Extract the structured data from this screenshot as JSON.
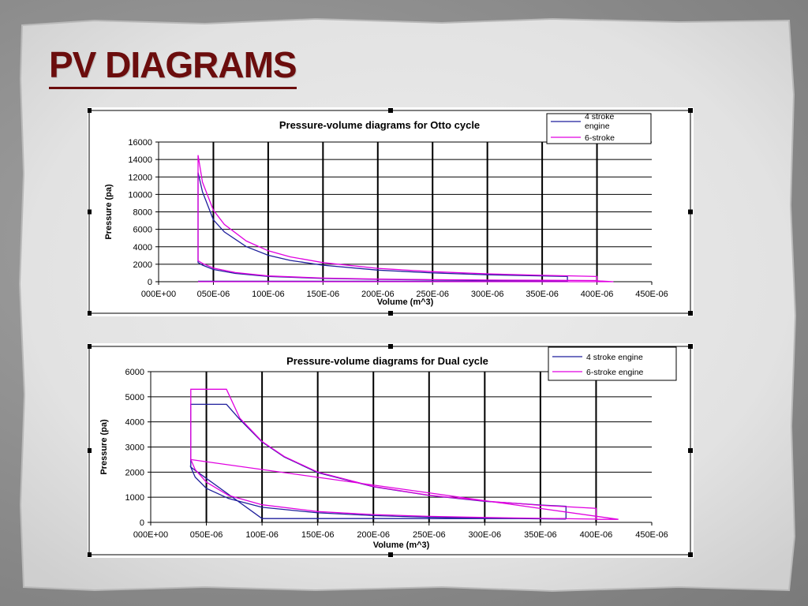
{
  "slide": {
    "title": "PV DIAGRAMS"
  },
  "chart_data": [
    {
      "type": "line",
      "title": "Pressure-volume diagrams for Otto cycle",
      "xlabel": "Volume (m^3)",
      "ylabel": "Pressure (pa)",
      "xlim": [
        0,
        0.00045
      ],
      "ylim": [
        0,
        16000
      ],
      "x_tick_labels": [
        "000E+00",
        "050E-06",
        "100E-06",
        "150E-06",
        "200E-06",
        "250E-06",
        "300E-06",
        "350E-06",
        "400E-06",
        "450E-06"
      ],
      "y_tick_labels": [
        "0",
        "2000",
        "4000",
        "6000",
        "8000",
        "10000",
        "12000",
        "14000",
        "16000"
      ],
      "grid": {
        "horizontal": true,
        "vertical": true
      },
      "legend_position": "top-right",
      "series": [
        {
          "name": "4 stroke engine",
          "color": "#1f1f9c",
          "points": [
            [
              3.6e-05,
              50
            ],
            [
              0.000373,
              50
            ],
            [
              0.000373,
              600
            ],
            [
              0.0003,
              800
            ],
            [
              0.00025,
              1000
            ],
            [
              0.0002,
              1330
            ],
            [
              0.00015,
              1890
            ],
            [
              0.00012,
              2440
            ],
            [
              0.0001,
              3030
            ],
            [
              8e-05,
              4010
            ],
            [
              6e-05,
              5700
            ],
            [
              5e-05,
              7100
            ],
            [
              4e-05,
              10300
            ],
            [
              3.6e-05,
              12500
            ],
            [
              3.6e-05,
              2200
            ],
            [
              4e-05,
              1900
            ],
            [
              5e-05,
              1400
            ],
            [
              7e-05,
              950
            ],
            [
              0.0001,
              600
            ],
            [
              0.00015,
              380
            ],
            [
              0.0002,
              270
            ],
            [
              0.00025,
              205
            ],
            [
              0.0003,
              165
            ],
            [
              0.00035,
              135
            ],
            [
              0.000373,
              120
            ]
          ]
        },
        {
          "name": "6-stroke",
          "color": "#e000e0",
          "points": [
            [
              3.6e-05,
              0
            ],
            [
              0.000415,
              0
            ],
            [
              0.0004,
              100
            ],
            [
              0.0004,
              600
            ],
            [
              0.00035,
              730
            ],
            [
              0.0003,
              900
            ],
            [
              0.00025,
              1150
            ],
            [
              0.0002,
              1530
            ],
            [
              0.00015,
              2190
            ],
            [
              0.00012,
              2850
            ],
            [
              0.0001,
              3540
            ],
            [
              8e-05,
              4660
            ],
            [
              6e-05,
              6560
            ],
            [
              5e-05,
              8200
            ],
            [
              4e-05,
              11400
            ],
            [
              3.6e-05,
              14500
            ],
            [
              3.6e-05,
              2400
            ],
            [
              4e-05,
              2100
            ],
            [
              5e-05,
              1560
            ],
            [
              7e-05,
              1050
            ],
            [
              0.0001,
              660
            ],
            [
              0.00015,
              420
            ],
            [
              0.0002,
              300
            ],
            [
              0.00025,
              235
            ],
            [
              0.0003,
              190
            ],
            [
              0.00035,
              160
            ],
            [
              0.0004,
              140
            ]
          ]
        }
      ]
    },
    {
      "type": "line",
      "title": "Pressure-volume diagrams for Dual cycle",
      "xlabel": "Volume (m^3)",
      "ylabel": "Pressure (pa)",
      "xlim": [
        0,
        0.00045
      ],
      "ylim": [
        0,
        6000
      ],
      "x_tick_labels": [
        "000E+00",
        "050E-06",
        "100E-06",
        "150E-06",
        "200E-06",
        "250E-06",
        "300E-06",
        "350E-06",
        "400E-06",
        "450E-06"
      ],
      "y_tick_labels": [
        "0",
        "1000",
        "2000",
        "3000",
        "4000",
        "5000",
        "6000"
      ],
      "grid": {
        "horizontal": true,
        "vertical": true
      },
      "legend_position": "top-right",
      "series": [
        {
          "name": "4 stroke engine",
          "color": "#1f1f9c",
          "points": [
            [
              3.6e-05,
              2200
            ],
            [
              3.6e-05,
              4700
            ],
            [
              6.8e-05,
              4700
            ],
            [
              8e-05,
              4100
            ],
            [
              0.0001,
              3200
            ],
            [
              0.00012,
              2600
            ],
            [
              0.00015,
              1980
            ],
            [
              0.0002,
              1420
            ],
            [
              0.00025,
              1070
            ],
            [
              0.0003,
              840
            ],
            [
              0.00035,
              690
            ],
            [
              0.000373,
              640
            ],
            [
              0.000373,
              150
            ],
            [
              0.0001,
              150
            ],
            [
              3.6e-05,
              2200
            ],
            [
              4e-05,
              1800
            ],
            [
              5e-05,
              1350
            ],
            [
              7e-05,
              950
            ],
            [
              0.0001,
              600
            ],
            [
              0.00015,
              380
            ],
            [
              0.0002,
              270
            ],
            [
              0.00025,
              205
            ],
            [
              0.0003,
              165
            ],
            [
              0.000373,
              130
            ]
          ]
        },
        {
          "name": "6-stroke engine",
          "color": "#e000e0",
          "points": [
            [
              3.6e-05,
              2500
            ],
            [
              3.6e-05,
              5300
            ],
            [
              6.8e-05,
              5300
            ],
            [
              8e-05,
              4150
            ],
            [
              0.0001,
              3220
            ],
            [
              0.00012,
              2620
            ],
            [
              0.00015,
              2000
            ],
            [
              0.0002,
              1430
            ],
            [
              0.00025,
              1080
            ],
            [
              0.0003,
              850
            ],
            [
              0.00035,
              680
            ],
            [
              0.0004,
              560
            ],
            [
              0.0004,
              120
            ],
            [
              0.00042,
              120
            ],
            [
              3.6e-05,
              2500
            ],
            [
              4e-05,
              2100
            ],
            [
              5e-05,
              1600
            ],
            [
              7e-05,
              1070
            ],
            [
              0.0001,
              700
            ],
            [
              0.00015,
              430
            ],
            [
              0.0002,
              310
            ],
            [
              0.00025,
              240
            ],
            [
              0.0003,
              195
            ],
            [
              0.00035,
              160
            ],
            [
              0.0004,
              130
            ]
          ]
        }
      ]
    }
  ]
}
